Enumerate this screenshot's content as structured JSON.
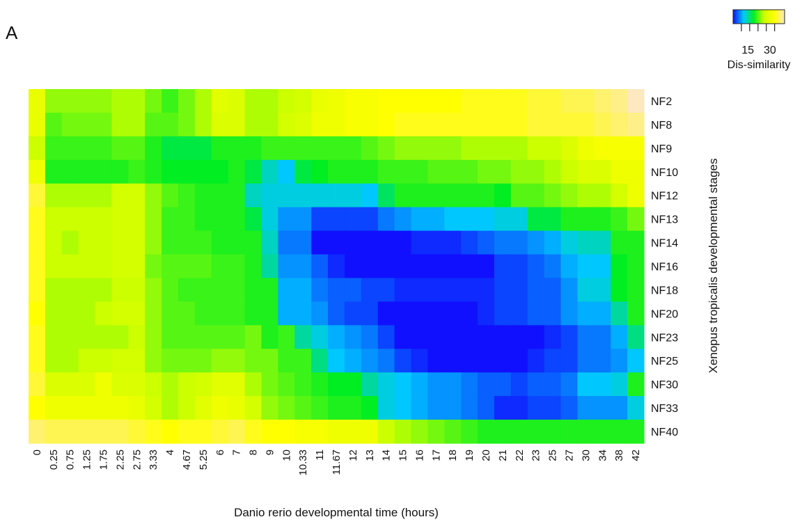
{
  "panel_label": "A",
  "chart_data": {
    "type": "heatmap",
    "xlabel": "Danio rerio developmental time (hours)",
    "ylabel": "Xenopus tropicalis developmental stages",
    "x_categories": [
      "0",
      "0.25",
      "0.75",
      "1.25",
      "1.75",
      "2.25",
      "2.75",
      "3.33",
      "4",
      "4.67",
      "5.25",
      "6",
      "7",
      "8",
      "9",
      "10",
      "10.33",
      "11",
      "11.67",
      "12",
      "13",
      "14",
      "15",
      "16",
      "17",
      "18",
      "19",
      "20",
      "21",
      "22",
      "23",
      "25",
      "27",
      "30",
      "34",
      "38",
      "42"
    ],
    "y_categories": [
      "NF2",
      "NF8",
      "NF9",
      "NF10",
      "NF12",
      "NF13",
      "NF14",
      "NF16",
      "NF18",
      "NF20",
      "NF23",
      "NF25",
      "NF30",
      "NF33",
      "NF40"
    ],
    "legend": {
      "title": "Dis-similarity",
      "tick_labels": [
        "15",
        "30"
      ],
      "tick_values": [
        15,
        30
      ],
      "range": [
        5,
        40
      ],
      "colors": [
        "#1010ff",
        "#00c8ff",
        "#00ee22",
        "#ccff00",
        "#ffff00",
        "#fde8c0"
      ]
    },
    "values": [
      [
        30,
        24,
        24,
        24,
        24,
        25,
        25,
        23,
        21,
        23,
        25,
        29,
        28,
        25,
        25,
        26,
        27,
        30,
        31,
        32,
        32,
        33,
        33,
        33,
        33,
        33,
        34,
        34,
        34,
        34,
        35,
        35,
        36,
        36,
        37,
        38,
        40
      ],
      [
        30,
        22,
        23,
        23,
        23,
        25,
        25,
        22,
        22,
        23,
        25,
        28,
        28,
        25,
        25,
        27,
        28,
        31,
        31,
        32,
        32,
        33,
        34,
        34,
        34,
        34,
        34,
        34,
        34,
        34,
        35,
        35,
        35,
        35,
        36,
        37,
        38
      ],
      [
        26,
        21,
        21,
        21,
        21,
        22,
        22,
        20,
        18,
        18,
        18,
        20,
        20,
        20,
        21,
        21,
        21,
        21,
        21,
        21,
        22,
        23,
        24,
        24,
        24,
        24,
        25,
        25,
        25,
        25,
        26,
        26,
        28,
        31,
        32,
        32,
        32
      ],
      [
        31,
        20,
        20,
        20,
        20,
        20,
        21,
        20,
        19,
        19,
        19,
        19,
        20,
        18,
        14,
        12,
        18,
        19,
        20,
        20,
        20,
        21,
        21,
        21,
        22,
        22,
        22,
        23,
        23,
        24,
        24,
        25,
        26,
        28,
        28,
        31,
        31
      ],
      [
        35,
        25,
        25,
        25,
        25,
        27,
        27,
        24,
        22,
        21,
        20,
        20,
        20,
        14,
        13,
        13,
        13,
        13,
        13,
        13,
        12,
        17,
        20,
        20,
        20,
        20,
        20,
        20,
        19,
        22,
        22,
        23,
        24,
        25,
        25,
        27,
        31
      ],
      [
        34,
        26,
        26,
        26,
        26,
        27,
        27,
        24,
        21,
        21,
        20,
        20,
        20,
        18,
        13,
        10,
        10,
        7,
        7,
        7,
        7,
        9,
        10,
        11,
        11,
        12,
        12,
        12,
        13,
        13,
        18,
        18,
        20,
        20,
        20,
        21,
        23
      ],
      [
        34,
        26,
        25,
        26,
        26,
        27,
        27,
        24,
        21,
        21,
        21,
        20,
        20,
        20,
        14,
        9,
        9,
        5,
        5,
        5,
        5,
        5,
        5,
        6,
        6,
        6,
        7,
        8,
        9,
        9,
        10,
        11,
        13,
        14,
        14,
        20,
        20
      ],
      [
        34,
        26,
        26,
        26,
        26,
        27,
        27,
        23,
        22,
        22,
        22,
        21,
        21,
        20,
        15,
        10,
        10,
        8,
        6,
        5,
        5,
        5,
        5,
        5,
        5,
        5,
        5,
        5,
        7,
        7,
        8,
        9,
        11,
        12,
        12,
        19,
        20
      ],
      [
        34,
        25,
        25,
        25,
        25,
        26,
        26,
        24,
        22,
        21,
        21,
        21,
        21,
        20,
        20,
        11,
        11,
        9,
        8,
        8,
        7,
        7,
        6,
        6,
        6,
        6,
        6,
        6,
        7,
        7,
        8,
        8,
        10,
        13,
        13,
        19,
        20
      ],
      [
        33,
        25,
        25,
        25,
        26,
        27,
        27,
        24,
        22,
        22,
        21,
        21,
        21,
        20,
        20,
        11,
        11,
        10,
        8,
        7,
        7,
        2,
        2,
        3,
        3,
        3,
        3,
        6,
        7,
        7,
        8,
        8,
        10,
        11,
        11,
        15,
        20
      ],
      [
        34,
        25,
        25,
        25,
        25,
        25,
        26,
        24,
        22,
        22,
        22,
        22,
        22,
        23,
        20,
        21,
        15,
        13,
        11,
        10,
        9,
        7,
        5,
        4,
        2,
        1,
        1,
        1,
        2,
        2,
        5,
        6,
        7,
        9,
        9,
        11,
        16
      ],
      [
        34,
        25,
        25,
        26,
        26,
        27,
        27,
        24,
        23,
        23,
        23,
        24,
        24,
        23,
        23,
        21,
        21,
        16,
        12,
        11,
        10,
        9,
        7,
        6,
        5,
        3,
        2,
        2,
        2,
        3,
        6,
        7,
        7,
        9,
        9,
        10,
        12
      ],
      [
        35,
        28,
        28,
        28,
        31,
        28,
        28,
        26,
        25,
        26,
        27,
        29,
        29,
        25,
        23,
        22,
        21,
        20,
        19,
        19,
        15,
        13,
        12,
        11,
        10,
        10,
        9,
        8,
        8,
        7,
        8,
        8,
        9,
        12,
        12,
        13,
        20
      ],
      [
        33,
        31,
        31,
        31,
        31,
        31,
        30,
        27,
        25,
        26,
        29,
        31,
        30,
        27,
        24,
        23,
        22,
        21,
        20,
        20,
        19,
        13,
        12,
        11,
        10,
        10,
        9,
        8,
        6,
        6,
        7,
        7,
        8,
        10,
        10,
        10,
        13
      ],
      [
        37,
        36,
        36,
        36,
        36,
        36,
        35,
        34,
        33,
        34,
        34,
        35,
        36,
        34,
        33,
        33,
        32,
        32,
        31,
        31,
        31,
        26,
        25,
        24,
        23,
        22,
        21,
        20,
        20,
        20,
        20,
        20,
        20,
        20,
        20,
        20,
        20
      ]
    ]
  }
}
